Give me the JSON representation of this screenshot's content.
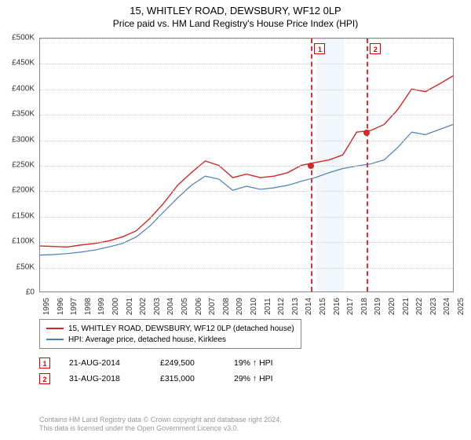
{
  "title": "15, WHITLEY ROAD, DEWSBURY, WF12 0LP",
  "subtitle": "Price paid vs. HM Land Registry's House Price Index (HPI)",
  "chart": {
    "type": "line",
    "ylim": [
      0,
      500000
    ],
    "ytick_step": 50000,
    "ytick_labels": [
      "£0",
      "£50K",
      "£100K",
      "£150K",
      "£200K",
      "£250K",
      "£300K",
      "£350K",
      "£400K",
      "£450K",
      "£500K"
    ],
    "xlim": [
      1995,
      2025
    ],
    "xtick_labels": [
      "1995",
      "1996",
      "1997",
      "1998",
      "1999",
      "2000",
      "2001",
      "2002",
      "2003",
      "2004",
      "2005",
      "2006",
      "2007",
      "2008",
      "2009",
      "2010",
      "2011",
      "2012",
      "2013",
      "2014",
      "2015",
      "2016",
      "2017",
      "2018",
      "2019",
      "2020",
      "2021",
      "2022",
      "2023",
      "2024",
      "2025"
    ],
    "background_color": "#ffffff",
    "grid_color": "#cccccc",
    "shaded_band": {
      "start": 2015,
      "end": 2017,
      "color": "#e8f0f8"
    },
    "series": [
      {
        "name": "property",
        "label": "15, WHITLEY ROAD, DEWSBURY, WF12 0LP (detached house)",
        "color": "#d62728",
        "line_width": 1.4,
        "data": [
          [
            1995,
            90000
          ],
          [
            1996,
            89000
          ],
          [
            1997,
            88000
          ],
          [
            1998,
            92000
          ],
          [
            1999,
            95000
          ],
          [
            2000,
            100000
          ],
          [
            2001,
            108000
          ],
          [
            2002,
            120000
          ],
          [
            2003,
            145000
          ],
          [
            2004,
            175000
          ],
          [
            2005,
            210000
          ],
          [
            2006,
            235000
          ],
          [
            2007,
            258000
          ],
          [
            2008,
            249000
          ],
          [
            2009,
            225000
          ],
          [
            2010,
            232000
          ],
          [
            2011,
            225000
          ],
          [
            2012,
            228000
          ],
          [
            2013,
            235000
          ],
          [
            2014,
            249500
          ],
          [
            2015,
            255000
          ],
          [
            2016,
            260000
          ],
          [
            2017,
            270000
          ],
          [
            2018,
            315000
          ],
          [
            2019,
            318000
          ],
          [
            2020,
            330000
          ],
          [
            2021,
            360000
          ],
          [
            2022,
            400000
          ],
          [
            2023,
            395000
          ],
          [
            2024,
            410000
          ],
          [
            2025,
            426000
          ]
        ]
      },
      {
        "name": "hpi",
        "label": "HPI: Average price, detached house, Kirklees",
        "color": "#4a7fb8",
        "line_width": 1.2,
        "data": [
          [
            1995,
            72000
          ],
          [
            1996,
            73000
          ],
          [
            1997,
            75000
          ],
          [
            1998,
            78000
          ],
          [
            1999,
            82000
          ],
          [
            2000,
            88000
          ],
          [
            2001,
            95000
          ],
          [
            2002,
            108000
          ],
          [
            2003,
            130000
          ],
          [
            2004,
            158000
          ],
          [
            2005,
            185000
          ],
          [
            2006,
            210000
          ],
          [
            2007,
            228000
          ],
          [
            2008,
            222000
          ],
          [
            2009,
            200000
          ],
          [
            2010,
            208000
          ],
          [
            2011,
            202000
          ],
          [
            2012,
            205000
          ],
          [
            2013,
            210000
          ],
          [
            2014,
            218000
          ],
          [
            2015,
            225000
          ],
          [
            2016,
            235000
          ],
          [
            2017,
            243000
          ],
          [
            2018,
            248000
          ],
          [
            2019,
            252000
          ],
          [
            2020,
            260000
          ],
          [
            2021,
            285000
          ],
          [
            2022,
            315000
          ],
          [
            2023,
            310000
          ],
          [
            2024,
            320000
          ],
          [
            2025,
            330000
          ]
        ]
      }
    ],
    "event_lines": [
      {
        "flag": "1",
        "x": 2014.63,
        "color": "#e03030"
      },
      {
        "flag": "2",
        "x": 2018.66,
        "color": "#e03030"
      }
    ],
    "markers": [
      {
        "x": 2014.63,
        "y": 249500,
        "color": "#d62728"
      },
      {
        "x": 2018.66,
        "y": 315000,
        "color": "#d62728"
      }
    ]
  },
  "transactions": [
    {
      "flag": "1",
      "date": "21-AUG-2014",
      "price": "£249,500",
      "vs_hpi": "19% ↑ HPI"
    },
    {
      "flag": "2",
      "date": "31-AUG-2018",
      "price": "£315,000",
      "vs_hpi": "29% ↑ HPI"
    }
  ],
  "footer": {
    "line1": "Contains HM Land Registry data © Crown copyright and database right 2024.",
    "line2": "This data is licensed under the Open Government Licence v3.0."
  }
}
